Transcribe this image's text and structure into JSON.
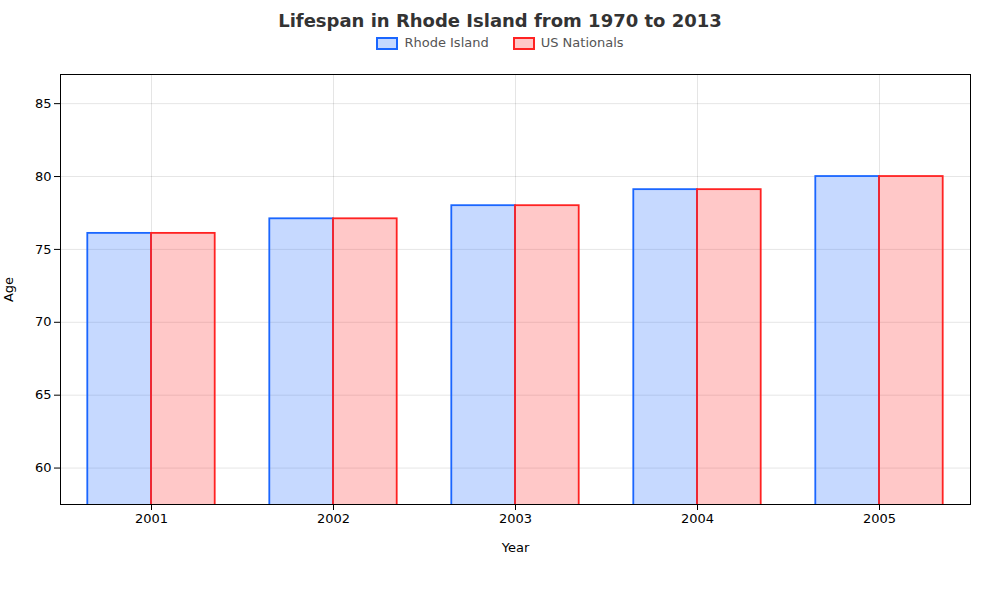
{
  "chart_data": {
    "type": "bar",
    "title": "Lifespan in Rhode Island from 1970 to 2013",
    "xlabel": "Year",
    "ylabel": "Age",
    "categories": [
      2001,
      2002,
      2003,
      2004,
      2005
    ],
    "series": [
      {
        "name": "Rhode Island",
        "color": "#1a66ff",
        "values": [
          76.1,
          77.1,
          78.0,
          79.1,
          80.0
        ]
      },
      {
        "name": "US Nationals",
        "color": "#ff2222",
        "values": [
          76.1,
          77.1,
          78.0,
          79.1,
          80.0
        ]
      }
    ],
    "ylim": [
      57.5,
      87
    ],
    "yticks": [
      60,
      65,
      70,
      75,
      80,
      85
    ],
    "grid": true,
    "legend": "top"
  }
}
